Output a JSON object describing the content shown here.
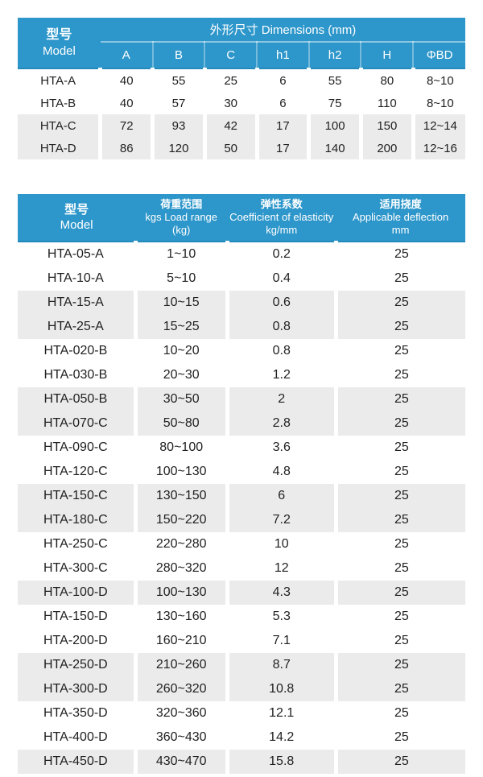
{
  "colors": {
    "header_blue": "#2D96CA",
    "header_blue_dark_edge": "#2489BB",
    "row_stripe_gray": "#EBEBEB",
    "body_text": "#1F1F1F",
    "header_text": "#FFFFFF"
  },
  "dimensions_table": {
    "header": {
      "model_cn": "型号",
      "model_en": "Model",
      "group_label": "外形尺寸 Dimensions (mm)",
      "columns": [
        "A",
        "B",
        "C",
        "h1",
        "h2",
        "H",
        "ΦBD"
      ]
    },
    "rows": [
      [
        "HTA-A",
        "40",
        "55",
        "25",
        "6",
        "55",
        "80",
        "8~10"
      ],
      [
        "HTA-B",
        "40",
        "57",
        "30",
        "6",
        "75",
        "110",
        "8~10"
      ],
      [
        "HTA-C",
        "72",
        "93",
        "42",
        "17",
        "100",
        "150",
        "12~14"
      ],
      [
        "HTA-D",
        "86",
        "120",
        "50",
        "17",
        "140",
        "200",
        "12~16"
      ]
    ]
  },
  "load_table": {
    "header": {
      "model": [
        "型号",
        "Model"
      ],
      "load_range": [
        "荷重范围",
        "kgs Load range",
        "(kg)"
      ],
      "elasticity": [
        "弹性系数",
        "Coefficient of elasticity",
        "kg/mm"
      ],
      "deflection": [
        "适用挠度",
        "Applicable deflection",
        "mm"
      ]
    },
    "rows": [
      [
        "HTA-05-A",
        "1~10",
        "0.2",
        "25"
      ],
      [
        "HTA-10-A",
        "5~10",
        "0.4",
        "25"
      ],
      [
        "HTA-15-A",
        "10~15",
        "0.6",
        "25"
      ],
      [
        "HTA-25-A",
        "15~25",
        "0.8",
        "25"
      ],
      [
        "HTA-020-B",
        "10~20",
        "0.8",
        "25"
      ],
      [
        "HTA-030-B",
        "20~30",
        "1.2",
        "25"
      ],
      [
        "HTA-050-B",
        "30~50",
        "2",
        "25"
      ],
      [
        "HTA-070-C",
        "50~80",
        "2.8",
        "25"
      ],
      [
        "HTA-090-C",
        "80~100",
        "3.6",
        "25"
      ],
      [
        "HTA-120-C",
        "100~130",
        "4.8",
        "25"
      ],
      [
        "HTA-150-C",
        "130~150",
        "6",
        "25"
      ],
      [
        "HTA-180-C",
        "150~220",
        "7.2",
        "25"
      ],
      [
        "HTA-250-C",
        "220~280",
        "10",
        "25"
      ],
      [
        "HTA-300-C",
        "280~320",
        "12",
        "25"
      ],
      [
        "HTA-100-D",
        "100~130",
        "4.3",
        "25"
      ],
      [
        "HTA-150-D",
        "130~160",
        "5.3",
        "25"
      ],
      [
        "HTA-200-D",
        "160~210",
        "7.1",
        "25"
      ],
      [
        "HTA-250-D",
        "210~260",
        "8.7",
        "25"
      ],
      [
        "HTA-300-D",
        "260~320",
        "10.8",
        "25"
      ],
      [
        "HTA-350-D",
        "320~360",
        "12.1",
        "25"
      ],
      [
        "HTA-400-D",
        "360~430",
        "14.2",
        "25"
      ],
      [
        "HTA-450-D",
        "430~470",
        "15.8",
        "25"
      ]
    ]
  }
}
